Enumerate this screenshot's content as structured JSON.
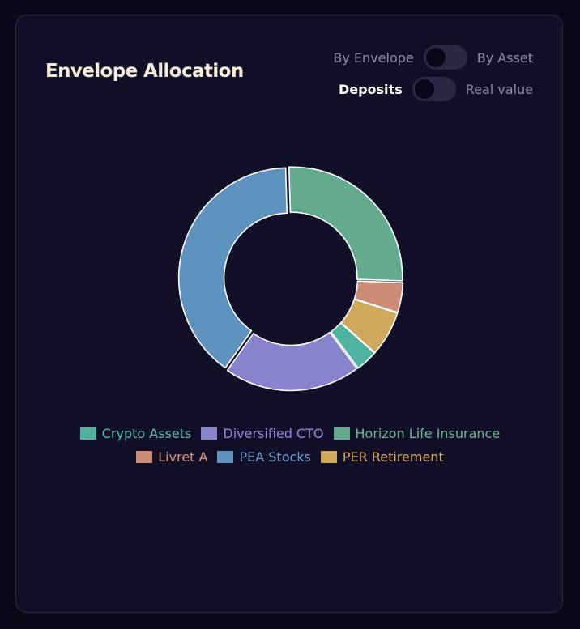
{
  "header": {
    "title": "Envelope Allocation",
    "view_toggle": {
      "left_label": "By Envelope",
      "right_label": "By Asset",
      "selected": "By Envelope"
    },
    "value_toggle": {
      "left_label": "Deposits",
      "right_label": "Real value",
      "selected": "Deposits"
    }
  },
  "chart_data": {
    "type": "pie",
    "style": "donut",
    "legend_position": "bottom",
    "categories": [
      "Crypto Assets",
      "Diversified CTO",
      "Horizon Life Insurance",
      "Livret A",
      "PEA Stocks",
      "PER Retirement"
    ],
    "values": [
      3.2,
      20.0,
      26.0,
      4.4,
      39.7,
      6.6
    ],
    "colors": [
      "#4fb3a2",
      "#8783cc",
      "#64ab8d",
      "#cc8b74",
      "#5f93bf",
      "#cfa85b"
    ],
    "text_colors": [
      "#58bcab",
      "#8f89db",
      "#6ab596",
      "#dc8f73",
      "#6b9fd2",
      "#d9a85b"
    ],
    "draw_order": [
      2,
      3,
      5,
      0,
      1,
      4
    ]
  }
}
